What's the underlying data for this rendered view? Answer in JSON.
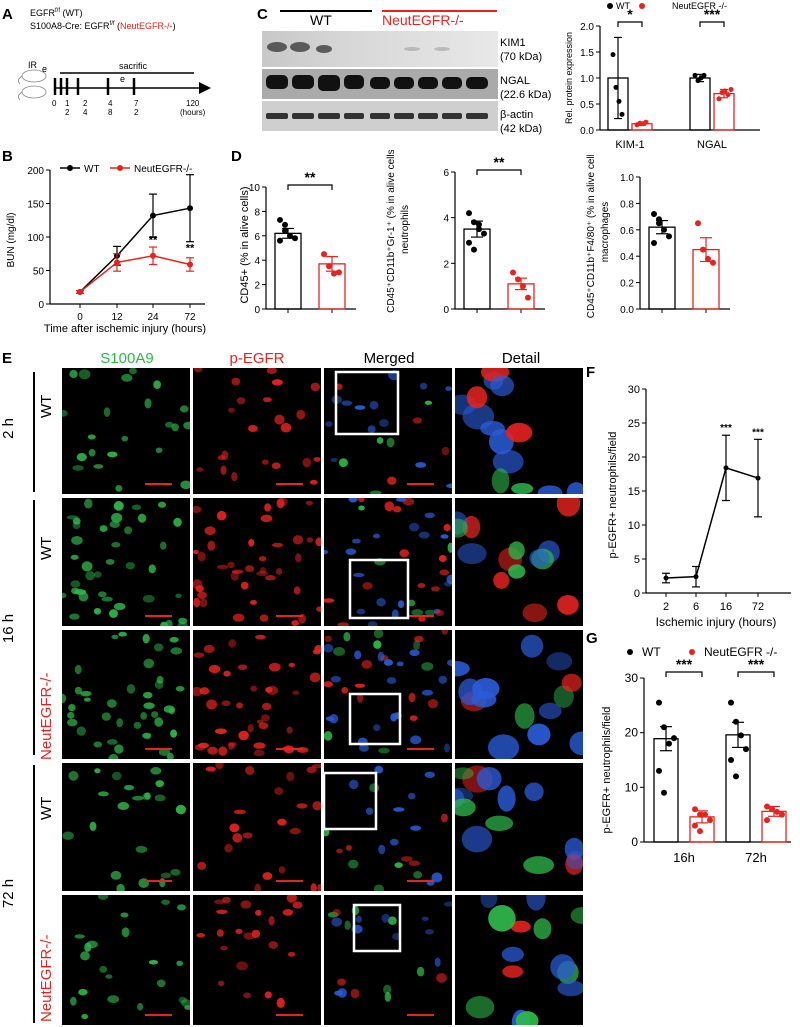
{
  "panel_labels": {
    "A": "A",
    "B": "B",
    "C": "C",
    "D": "D",
    "E": "E",
    "F": "F",
    "G": "G"
  },
  "colors": {
    "wt": "#000000",
    "ko": "#e8231f",
    "green": "#2eb84a",
    "red": "#e8231f"
  },
  "panelA": {
    "line1": "EGFR",
    "line1_sup": "f/f",
    "line1_tail": " (WT)",
    "line2": "S100A8-Cre: EGFR",
    "line2_sup": "f/f",
    "line2_paren_open": " (",
    "line2_ko": "NeutEGFR-/-",
    "line2_paren_close": ")",
    "ir": "IR",
    "sacrific": "sacrific",
    "e": "e",
    "ticks": [
      "0",
      "1\n2",
      "2\n4",
      "4\n8",
      "7\n2",
      "120\n(hours)"
    ]
  },
  "panelC": {
    "wt_label": "WT",
    "ko_label": "NeutEGFR-/-",
    "bands": [
      {
        "name": "KIM1",
        "kda": "(70 kDa)"
      },
      {
        "name": "NGAL",
        "kda": "(22.6 kDa)"
      },
      {
        "name": "β-actin",
        "kda": "(42 kDa)"
      }
    ]
  },
  "panelE": {
    "col_headers": [
      "S100A9",
      "p-EGFR",
      "Merged",
      "Detail"
    ],
    "time_labels": [
      "2 h",
      "16 h",
      "72 h"
    ],
    "row_labels": [
      "WT",
      "WT",
      "NeutEGFR-/-",
      "WT",
      "NeutEGFR-/-"
    ]
  },
  "chart_data": [
    {
      "id": "B",
      "type": "line",
      "x": [
        0,
        12,
        24,
        72
      ],
      "xlabel": "Time after ischemic injury (hours)",
      "ylabel": "BUN (mg/dl)",
      "ylim": [
        0,
        200
      ],
      "yticks": [
        0,
        50,
        100,
        150,
        200
      ],
      "series": [
        {
          "name": "WT",
          "values": [
            18,
            72,
            132,
            143
          ],
          "err": [
            2,
            14,
            32,
            50
          ]
        },
        {
          "name": "NeutEGFR-/-",
          "values": [
            18,
            62,
            72,
            59
          ],
          "err": [
            2,
            13,
            13,
            10
          ]
        }
      ],
      "annotations": [
        "**",
        "**"
      ]
    },
    {
      "id": "C-bar",
      "type": "bar",
      "categories": [
        "KIM-1",
        "NGAL"
      ],
      "ylabel": "Rel. protein expression",
      "ylim": [
        0,
        2.0
      ],
      "yticks": [
        0.0,
        0.5,
        1.0,
        1.5,
        2.0
      ],
      "legend": [
        "WT",
        "NeutEGFR -/-"
      ],
      "series": [
        {
          "name": "WT",
          "values": [
            1.0,
            1.0
          ],
          "err": [
            0.78,
            0.07
          ]
        },
        {
          "name": "NeutEGFR -/-",
          "values": [
            0.12,
            0.7
          ],
          "err": [
            0.03,
            0.08
          ]
        }
      ],
      "points": {
        "wt": [
          [
            1.45,
            0.82,
            0.55,
            0.3
          ],
          [
            1.05,
            0.95,
            1.0,
            1.05
          ]
        ],
        "ko": [
          [
            0.1,
            0.13,
            0.12,
            0.15
          ],
          [
            0.6,
            0.72,
            0.75,
            0.68,
            0.78
          ]
        ]
      },
      "annotations": [
        "*",
        "***"
      ]
    },
    {
      "id": "D1",
      "type": "bar",
      "ylabel": "CD45+ (% in alive cells)",
      "ylim": [
        0,
        10
      ],
      "yticks": [
        0,
        2,
        4,
        6,
        8,
        10
      ],
      "series": [
        {
          "name": "WT",
          "values": [
            6.2
          ],
          "err": [
            0.4
          ]
        },
        {
          "name": "NeutEGFR -/-",
          "values": [
            3.7
          ],
          "err": [
            0.6
          ]
        }
      ],
      "points": {
        "wt": [
          7.3,
          6.4,
          6.0,
          5.8,
          5.6,
          6.9
        ],
        "ko": [
          4.5,
          3.5,
          2.9,
          3.0
        ]
      },
      "annotations": [
        "**"
      ]
    },
    {
      "id": "D2",
      "type": "bar",
      "ylabel": "CD45+CD11b+Gr-1+ neutrophils (% in alive cells)",
      "ylim": [
        0,
        6
      ],
      "yticks": [
        0,
        2,
        4,
        6
      ],
      "series": [
        {
          "name": "WT",
          "values": [
            3.5
          ],
          "err": [
            0.35
          ]
        },
        {
          "name": "NeutEGFR -/-",
          "values": [
            1.1
          ],
          "err": [
            0.25
          ]
        }
      ],
      "points": {
        "wt": [
          4.2,
          3.8,
          3.5,
          3.3,
          2.9,
          2.6,
          3.7
        ],
        "ko": [
          1.6,
          1.3,
          1.0,
          0.5
        ]
      },
      "annotations": [
        "**"
      ]
    },
    {
      "id": "D3",
      "type": "bar",
      "ylabel": "CD45+CD11b+F4/80+ macrophages (% in alive cells)",
      "ylim": [
        0,
        1.0
      ],
      "yticks": [
        0.0,
        0.2,
        0.4,
        0.6,
        0.8,
        1.0
      ],
      "series": [
        {
          "name": "WT",
          "values": [
            0.62
          ],
          "err": [
            0.05
          ]
        },
        {
          "name": "NeutEGFR -/-",
          "values": [
            0.45
          ],
          "err": [
            0.09
          ]
        }
      ],
      "points": {
        "wt": [
          0.72,
          0.65,
          0.6,
          0.55,
          0.5,
          0.68
        ],
        "ko": [
          0.65,
          0.45,
          0.38,
          0.35
        ]
      }
    },
    {
      "id": "F",
      "type": "line",
      "categories": [
        "2",
        "6",
        "16",
        "72"
      ],
      "xlabel": "Ischemic injury (hours)",
      "ylabel": "p-EGFR+ neutrophils/field",
      "ylim": [
        0,
        30
      ],
      "yticks": [
        0,
        5,
        10,
        15,
        20,
        25,
        30
      ],
      "series": [
        {
          "name": "WT",
          "values": [
            2.2,
            2.4,
            18.4,
            16.9
          ],
          "err": [
            0.7,
            1.5,
            4.8,
            5.7
          ]
        }
      ],
      "annotations": [
        "***",
        "***"
      ]
    },
    {
      "id": "G",
      "type": "bar",
      "categories": [
        "16h",
        "72h"
      ],
      "ylabel": "p-EGFR+ neutrophils/field",
      "ylim": [
        0,
        30
      ],
      "yticks": [
        0,
        10,
        20,
        30
      ],
      "legend": [
        "WT",
        "NeutEGFR -/-"
      ],
      "series": [
        {
          "name": "WT",
          "values": [
            18.9,
            19.6
          ],
          "err": [
            2.2,
            2.3
          ]
        },
        {
          "name": "NeutEGFR -/-",
          "values": [
            4.6,
            5.6
          ],
          "err": [
            1.1,
            0.9
          ]
        }
      ],
      "points": {
        "wt": [
          [
            25.5,
            21,
            18,
            19,
            13,
            9
          ],
          [
            25.5,
            22,
            19.5,
            17,
            15,
            12
          ]
        ],
        "ko": [
          [
            6,
            5,
            5,
            4,
            3,
            2
          ],
          [
            6.5,
            6,
            5.5,
            5,
            4
          ]
        ]
      },
      "annotations": [
        "***",
        "***"
      ]
    }
  ]
}
